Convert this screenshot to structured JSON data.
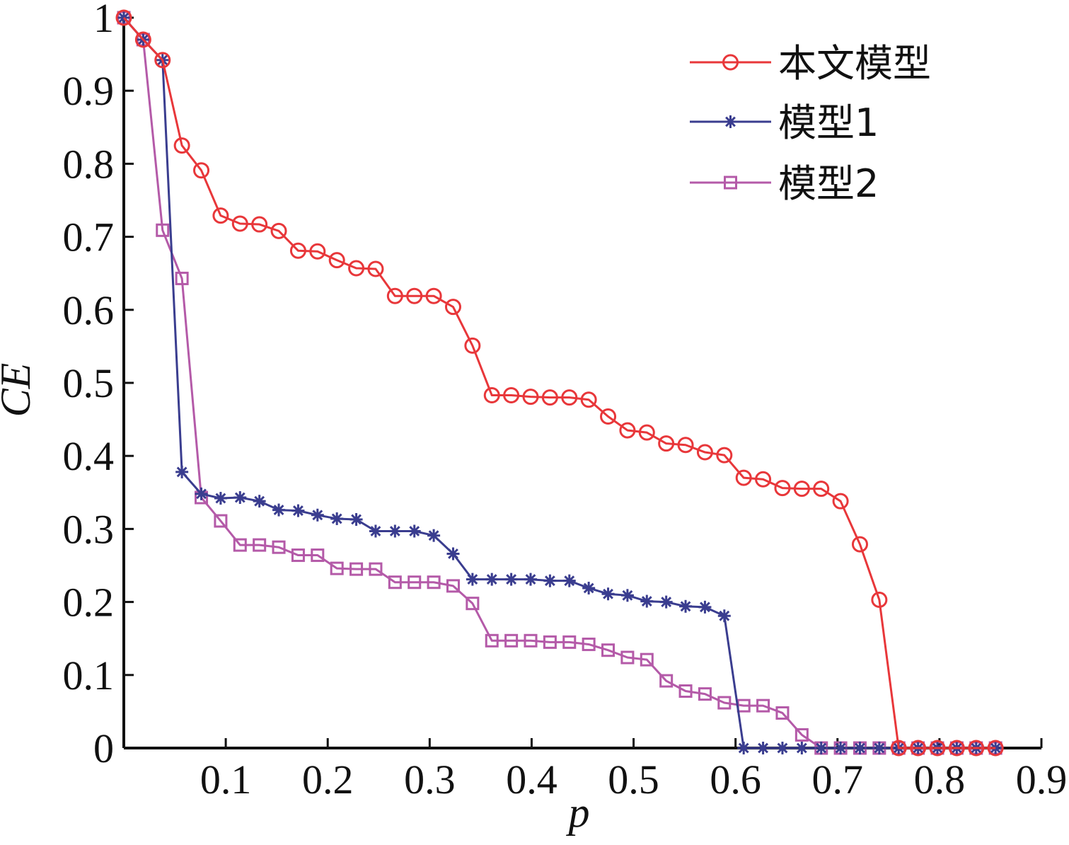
{
  "chart_data": {
    "type": "line",
    "title": "",
    "xlabel": "p",
    "ylabel": "CE",
    "xlim": [
      0,
      0.9
    ],
    "ylim": [
      0,
      1
    ],
    "x_ticks": [
      "0.1",
      "0.2",
      "0.3",
      "0.4",
      "0.5",
      "0.6",
      "0.7",
      "0.8",
      "0.9"
    ],
    "y_ticks": [
      "0",
      "0.1",
      "0.2",
      "0.3",
      "0.4",
      "0.5",
      "0.6",
      "0.7",
      "0.8",
      "0.9",
      "1"
    ],
    "grid": false,
    "legend_position": "top-right",
    "x": [
      0.0,
      0.019,
      0.038,
      0.057,
      0.076,
      0.095,
      0.114,
      0.133,
      0.152,
      0.171,
      0.19,
      0.209,
      0.228,
      0.247,
      0.266,
      0.285,
      0.304,
      0.323,
      0.342,
      0.361,
      0.38,
      0.399,
      0.418,
      0.437,
      0.456,
      0.475,
      0.494,
      0.513,
      0.532,
      0.551,
      0.57,
      0.589,
      0.608,
      0.627,
      0.646,
      0.665,
      0.684,
      0.703,
      0.722,
      0.741,
      0.76,
      0.779,
      0.798,
      0.817,
      0.836,
      0.855
    ],
    "series": [
      {
        "name": "本文模型",
        "color": "#e8373a",
        "marker": "circle",
        "values": [
          1.0,
          0.97,
          0.942,
          0.825,
          0.791,
          0.729,
          0.718,
          0.717,
          0.708,
          0.681,
          0.68,
          0.668,
          0.657,
          0.656,
          0.619,
          0.619,
          0.619,
          0.604,
          0.551,
          0.483,
          0.483,
          0.481,
          0.48,
          0.48,
          0.477,
          0.454,
          0.435,
          0.432,
          0.417,
          0.415,
          0.405,
          0.401,
          0.37,
          0.368,
          0.356,
          0.355,
          0.355,
          0.338,
          0.279,
          0.203,
          0.0,
          0.0,
          0.0,
          0.0,
          0.0,
          0.0
        ]
      },
      {
        "name": "模型1",
        "color": "#3a3d8f",
        "marker": "star",
        "values": [
          1.0,
          0.97,
          0.942,
          0.378,
          0.348,
          0.342,
          0.343,
          0.338,
          0.326,
          0.325,
          0.319,
          0.314,
          0.313,
          0.297,
          0.297,
          0.297,
          0.291,
          0.266,
          0.231,
          0.231,
          0.231,
          0.231,
          0.229,
          0.229,
          0.219,
          0.211,
          0.209,
          0.201,
          0.2,
          0.194,
          0.193,
          0.181,
          0.0,
          0.0,
          0.0,
          0.0,
          0.0,
          0.0,
          0.0,
          0.0,
          0.0,
          0.0,
          0.0,
          0.0,
          0.0,
          0.0
        ]
      },
      {
        "name": "模型2",
        "color": "#b45aa8",
        "marker": "square",
        "values": [
          1.0,
          0.97,
          0.709,
          0.643,
          0.343,
          0.311,
          0.278,
          0.278,
          0.275,
          0.264,
          0.264,
          0.246,
          0.245,
          0.245,
          0.227,
          0.227,
          0.227,
          0.222,
          0.198,
          0.147,
          0.147,
          0.147,
          0.145,
          0.145,
          0.142,
          0.134,
          0.124,
          0.121,
          0.092,
          0.078,
          0.074,
          0.062,
          0.058,
          0.058,
          0.048,
          0.018,
          0.0,
          0.0,
          0.0,
          0.0,
          0.0,
          0.0,
          0.0,
          0.0,
          0.0,
          0.0
        ]
      }
    ]
  }
}
